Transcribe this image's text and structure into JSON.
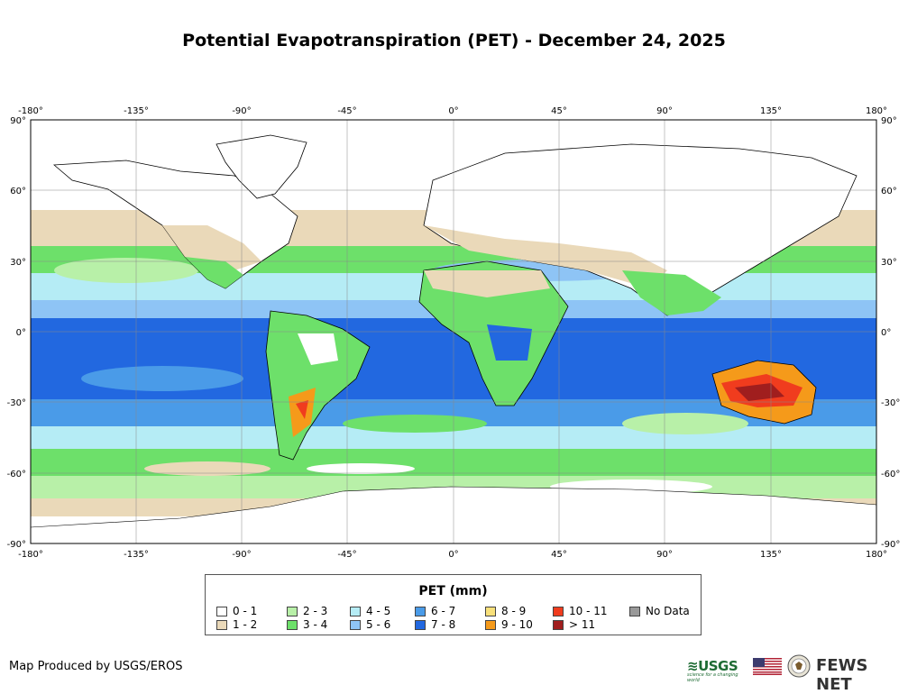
{
  "title": "Potential Evapotranspiration (PET) - December 24, 2025",
  "map": {
    "lon_ticks": [
      "-180°",
      "-135°",
      "-90°",
      "-45°",
      "0°",
      "45°",
      "90°",
      "135°",
      "180°"
    ],
    "lat_ticks": [
      "90°",
      "60°",
      "30°",
      "0°",
      "-30°",
      "-60°",
      "-90°"
    ],
    "ocean_color": "#4a9be8",
    "land_outline_color": "#000000"
  },
  "legend": {
    "title": "PET (mm)",
    "items": [
      {
        "label": "0 - 1",
        "color": "#ffffff"
      },
      {
        "label": "1 - 2",
        "color": "#ead9b9"
      },
      {
        "label": "2 - 3",
        "color": "#b8f0a8"
      },
      {
        "label": "3 - 4",
        "color": "#6de06a"
      },
      {
        "label": "4 - 5",
        "color": "#b5ecf5"
      },
      {
        "label": "5 - 6",
        "color": "#8ec4f5"
      },
      {
        "label": "6 - 7",
        "color": "#4a9be8"
      },
      {
        "label": "7 - 8",
        "color": "#2268e0"
      },
      {
        "label": "8 - 9",
        "color": "#f8e07a"
      },
      {
        "label": "9 - 10",
        "color": "#f59a1a"
      },
      {
        "label": "10 - 11",
        "color": "#f03c1e"
      },
      {
        "label": "> 11",
        "color": "#a01e1e"
      },
      {
        "label": "No Data",
        "color": "#999999"
      }
    ]
  },
  "footer": {
    "credit": "Map Produced by USGS/EROS",
    "usgs_logo_text": "≋USGS",
    "usgs_tagline": "science for a changing world",
    "fews_text": "FEWS NET"
  }
}
